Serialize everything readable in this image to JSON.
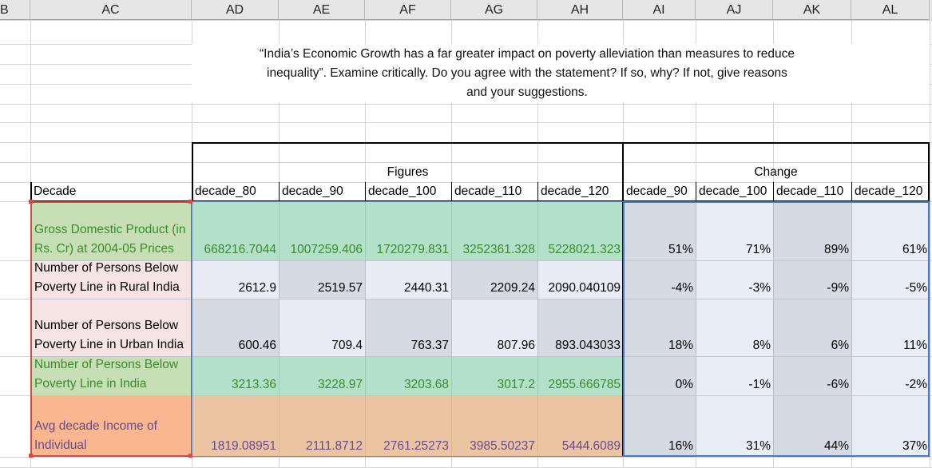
{
  "column_headers": [
    "B",
    "AC",
    "AD",
    "AE",
    "AF",
    "AG",
    "AH",
    "AI",
    "AJ",
    "AK",
    "AL"
  ],
  "title_lines": [
    "“India’s Economic Growth has a far greater impact on poverty alleviation than measures to reduce",
    "inequality”. Examine critically. Do you agree with the statement? If so, why? If not, give reasons",
    "and  your suggestions."
  ],
  "group_headers": {
    "figures": "Figures",
    "change": "Change"
  },
  "table_header": [
    "Decade",
    "decade_80",
    "decade_90",
    "decade_100",
    "decade_110",
    "decade_120",
    "decade_90",
    "decade_100",
    "decade_110",
    "decade_120"
  ],
  "rows": [
    {
      "label": "Gross Domestic Product (in Rs. Cr) at 2004-05 Prices",
      "figures": [
        "668216.7044",
        "1007259.406",
        "1720279.831",
        "3252361.328",
        "5228021.323"
      ],
      "change": [
        "51%",
        "71%",
        "89%",
        "61%"
      ]
    },
    {
      "label": "Number of Persons Below Poverty Line in Rural India",
      "figures": [
        "2612.9",
        "2519.57",
        "2440.31",
        "2209.24",
        "2090.040109"
      ],
      "change": [
        "-4%",
        "-3%",
        "-9%",
        "-5%"
      ]
    },
    {
      "label": "Number of Persons Below Poverty Line in Urban India",
      "figures": [
        "600.46",
        "709.4",
        "763.37",
        "807.96",
        "893.043033"
      ],
      "change": [
        "18%",
        "8%",
        "6%",
        "11%"
      ]
    },
    {
      "label": "Number of Persons Below Poverty Line in India",
      "figures": [
        "3213.36",
        "3228.97",
        "3203.68",
        "3017.2",
        "2955.666785"
      ],
      "change": [
        "0%",
        "-1%",
        "-6%",
        "-2%"
      ]
    },
    {
      "label": "Avg decade Income of Individual",
      "figures": [
        "1819.08951",
        "2111.8712",
        "2761.25273",
        "3985.50237",
        "5444.6089"
      ],
      "change": [
        "16%",
        "31%",
        "44%",
        "37%"
      ]
    }
  ],
  "colors": {
    "header_bg": "#e6e6e6",
    "gdp_label": "#c6dfb4",
    "gdp_figures": "#b3e0c9",
    "rural_label": "#f6e3e3",
    "rural_figures": "#e9ecf4",
    "india_label": "#c6dfb4",
    "india_figures": "#b3e0c9",
    "income_label": "#f8b78e",
    "income_figures": "#ebc4a1",
    "change_dark": "#d6dae2",
    "change_light": "#e9eef6",
    "green_text": "#3b8a2f",
    "purple_text": "#6a4a8c"
  }
}
